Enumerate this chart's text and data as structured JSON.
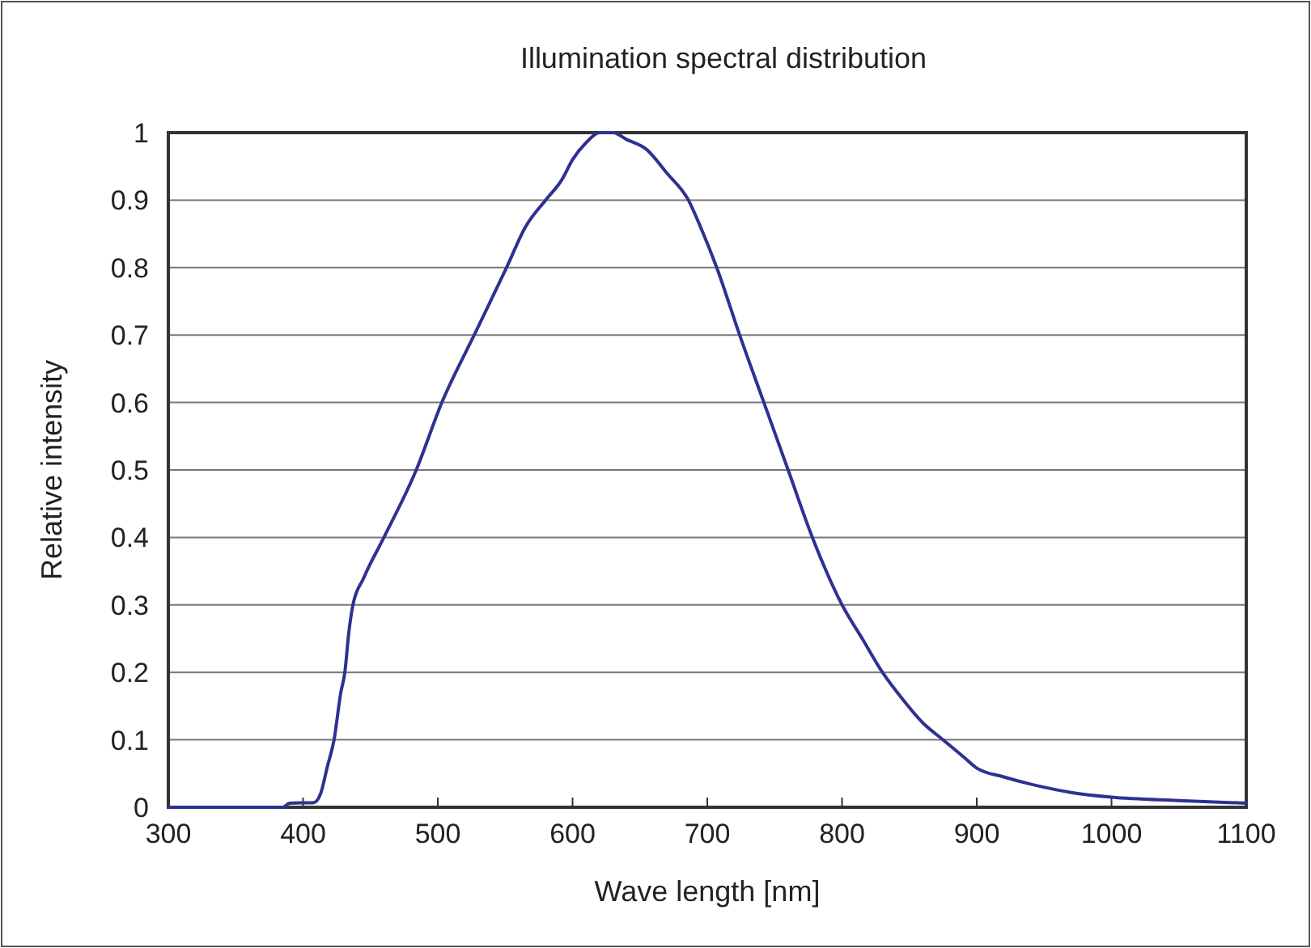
{
  "chart_data": {
    "type": "line",
    "title": "Illumination spectral distribution",
    "xlabel": "Wave length [nm]",
    "ylabel": "Relative intensity",
    "xlim": [
      300,
      1100
    ],
    "xticks": [
      300,
      400,
      500,
      600,
      700,
      800,
      900,
      1000,
      1100
    ],
    "ylim": [
      0,
      1
    ],
    "yticks": [
      0,
      0.1,
      0.2,
      0.3,
      0.4,
      0.5,
      0.6,
      0.7,
      0.8,
      0.9,
      1
    ],
    "grid": "y",
    "marker": "none",
    "line_style": "solid",
    "series": [
      {
        "color": "#2e3192",
        "x": [
          300,
          385,
          390,
          408,
          413,
          418,
          423,
          428,
          431,
          434,
          437,
          445,
          460,
          484,
          503,
          527,
          551,
          565,
          580,
          592,
          600,
          610,
          620,
          630,
          640,
          655,
          670,
          686,
          695,
          707,
          724,
          742,
          760,
          778,
          800,
          815,
          830,
          845,
          860,
          875,
          890,
          900,
          920,
          947,
          970,
          1000,
          1050,
          1100
        ],
        "values": [
          0,
          0,
          0.006,
          0.007,
          0.02,
          0.06,
          0.1,
          0.17,
          0.2,
          0.26,
          0.3,
          0.34,
          0.4,
          0.5,
          0.6,
          0.7,
          0.8,
          0.86,
          0.9,
          0.93,
          0.96,
          0.985,
          1,
          1,
          0.99,
          0.975,
          0.94,
          0.9,
          0.86,
          0.8,
          0.7,
          0.6,
          0.5,
          0.4,
          0.3,
          0.25,
          0.2,
          0.16,
          0.125,
          0.1,
          0.075,
          0.058,
          0.045,
          0.031,
          0.022,
          0.015,
          0.01,
          0.006
        ]
      }
    ]
  }
}
